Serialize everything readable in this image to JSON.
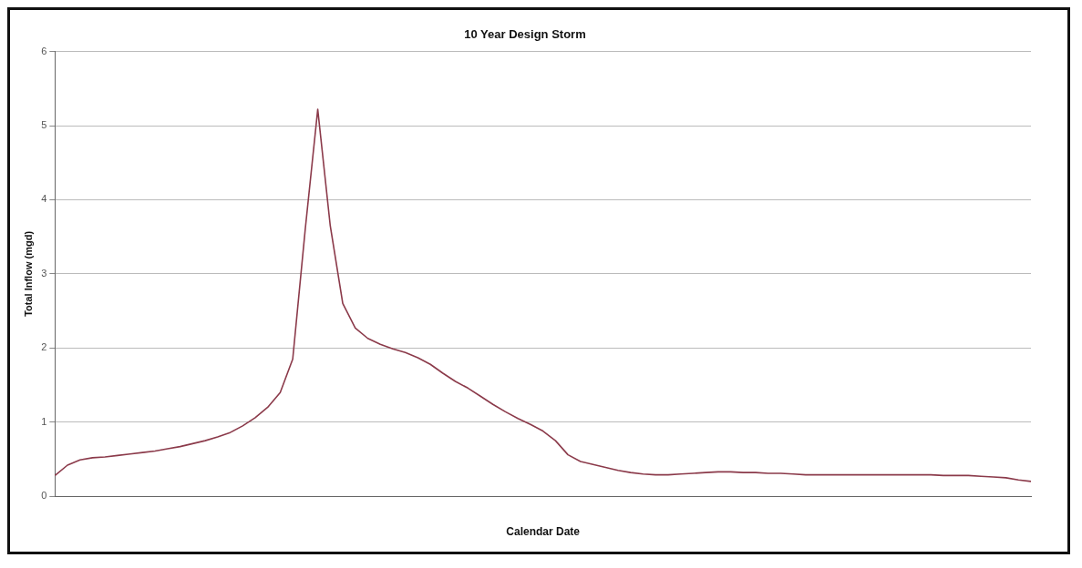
{
  "chart_data": {
    "type": "line",
    "title": "10 Year Design Storm",
    "xlabel": "Calendar Date",
    "ylabel": "Total Inflow (mgd)",
    "categories": [
      null,
      null,
      null,
      null,
      null,
      null,
      null,
      null,
      null,
      null,
      null,
      null,
      null,
      null,
      null,
      null,
      null,
      null,
      null,
      null,
      null,
      null,
      null,
      null,
      null,
      null,
      null,
      null,
      null,
      null,
      null,
      null,
      null,
      null,
      null,
      null,
      null,
      null,
      null,
      null,
      null,
      null,
      null,
      null,
      null,
      null,
      null,
      null,
      null,
      null,
      null,
      null,
      null,
      null,
      null,
      null,
      null,
      null,
      null,
      null,
      null,
      null,
      null,
      null,
      null,
      null,
      null,
      null,
      null,
      null,
      null,
      null,
      null,
      null,
      null,
      null,
      null,
      null,
      null
    ],
    "ylim": [
      0,
      6
    ],
    "yticks": [
      0,
      1,
      2,
      3,
      4,
      5,
      6
    ],
    "grid": true,
    "series": [
      {
        "color": "#8b3a4a",
        "values": [
          0.28,
          0.42,
          0.49,
          0.52,
          0.53,
          0.55,
          0.57,
          0.59,
          0.61,
          0.64,
          0.67,
          0.71,
          0.75,
          0.8,
          0.86,
          0.95,
          1.06,
          1.2,
          1.4,
          1.85,
          3.6,
          5.22,
          3.65,
          2.6,
          2.27,
          2.13,
          2.05,
          1.99,
          1.94,
          1.87,
          1.78,
          1.66,
          1.55,
          1.46,
          1.35,
          1.24,
          1.14,
          1.05,
          0.97,
          0.88,
          0.75,
          0.56,
          0.47,
          0.43,
          0.39,
          0.35,
          0.32,
          0.3,
          0.29,
          0.29,
          0.3,
          0.31,
          0.32,
          0.33,
          0.33,
          0.32,
          0.32,
          0.31,
          0.31,
          0.3,
          0.29,
          0.29,
          0.29,
          0.29,
          0.29,
          0.29,
          0.29,
          0.29,
          0.29,
          0.29,
          0.29,
          0.28,
          0.28,
          0.28,
          0.27,
          0.26,
          0.25,
          0.22,
          0.2
        ]
      }
    ]
  }
}
